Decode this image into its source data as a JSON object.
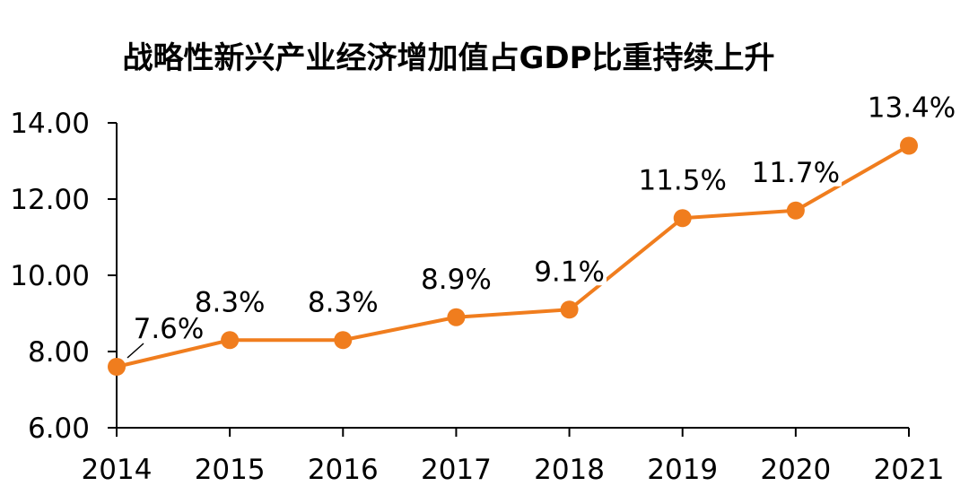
{
  "chart_data": {
    "type": "line",
    "title": "战略性新兴产业经济增加值占GDP比重持续上升",
    "xlabel": "",
    "ylabel": "",
    "categories": [
      "2014",
      "2015",
      "2016",
      "2017",
      "2018",
      "2019",
      "2020",
      "2021"
    ],
    "series": [
      {
        "values": [
          7.6,
          8.3,
          8.3,
          8.9,
          9.1,
          11.5,
          11.7,
          13.4
        ],
        "data_labels": [
          "7.6%",
          "8.3%",
          "8.3%",
          "8.9%",
          "9.1%",
          "11.5%",
          "11.7%",
          "13.4%"
        ],
        "color": "#f07d1e"
      }
    ],
    "ylim": [
      6,
      14
    ],
    "yticks": [
      "6.00",
      "8.00",
      "10.00",
      "12.00",
      "14.00"
    ],
    "grid": false,
    "legend": "none"
  }
}
